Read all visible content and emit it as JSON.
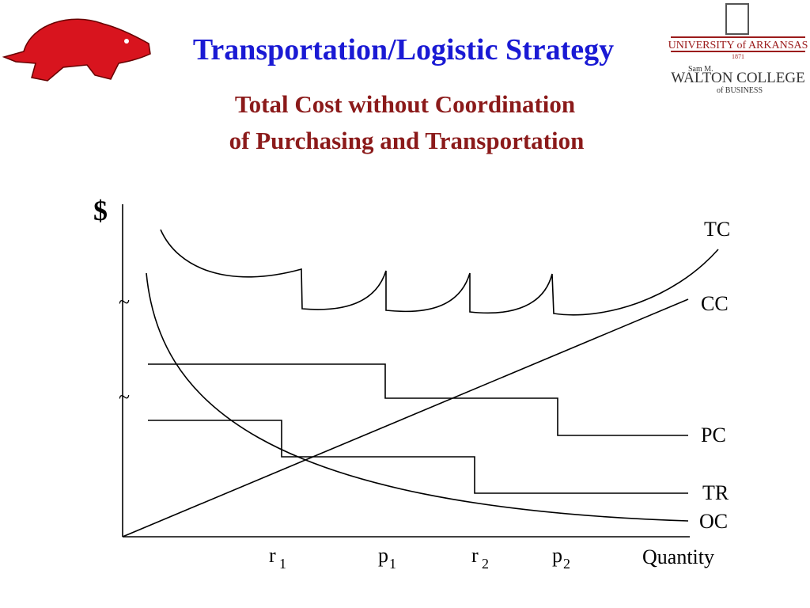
{
  "header": {
    "title": "Transportation/Logistic Strategy",
    "logo": {
      "university": "UNIVERSITY of ARKANSAS",
      "year": "1871",
      "college_line1": "Sam M.",
      "college_line2": "WALTON COLLEGE",
      "college_line3": "of BUSINESS"
    }
  },
  "subtitle": [
    "Total Cost without Coordination",
    "of Purchasing and Transportation"
  ],
  "diagram": {
    "y_axis_label": "$",
    "axis_breaks": [
      "~",
      "~"
    ],
    "curves": [
      "TC",
      "CC",
      "PC",
      "TR",
      "OC"
    ],
    "x_labels": [
      {
        "main": "r",
        "sub": "1"
      },
      {
        "main": "p",
        "sub": "1"
      },
      {
        "main": "r",
        "sub": "2"
      },
      {
        "main": "p",
        "sub": "2"
      }
    ],
    "x_axis_label": "Quantity"
  }
}
